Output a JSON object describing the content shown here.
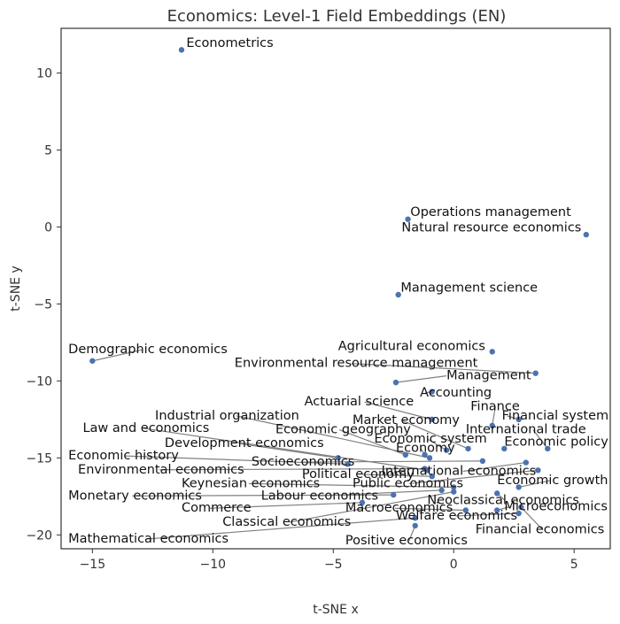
{
  "chart_data": {
    "type": "scatter",
    "title": "Economics: Level-1 Field Embeddings (EN)",
    "xlabel": "t-SNE x",
    "ylabel": "t-SNE y",
    "xlim": [
      -16.3,
      6.5
    ],
    "ylim": [
      -20.9,
      12.9
    ],
    "xticks": [
      -15,
      -10,
      -5,
      0,
      5
    ],
    "xtick_labels": [
      "−15",
      "−10",
      "−5",
      "0",
      "5"
    ],
    "yticks": [
      10,
      5,
      0,
      -5,
      -10,
      -15,
      -20
    ],
    "ytick_labels": [
      "10",
      "5",
      "0",
      "−5",
      "−10",
      "−15",
      "−20"
    ],
    "grid": false,
    "point_color": "#4c72b0",
    "connector_color": "#808080",
    "points": [
      {
        "label": "Econometrics",
        "x": -11.3,
        "y": 11.5,
        "lx": -11.1,
        "ly": 11.7,
        "line": false
      },
      {
        "label": "Operations management",
        "x": -1.9,
        "y": 0.5,
        "lx": -1.8,
        "ly": 0.7,
        "line": false
      },
      {
        "label": "Natural resource economics",
        "x": 5.5,
        "y": -0.5,
        "lx": 5.3,
        "ly": -0.3,
        "line": false,
        "anchor": "end"
      },
      {
        "label": "Management science",
        "x": -2.3,
        "y": -4.4,
        "lx": -2.2,
        "ly": -4.2,
        "line": false
      },
      {
        "label": "Demographic economics",
        "x": -15.0,
        "y": -8.7,
        "lx": -16.0,
        "ly": -8.2,
        "line": true
      },
      {
        "label": "Agricultural economics",
        "x": 1.6,
        "y": -8.1,
        "lx": -4.8,
        "ly": -8.0,
        "line": false
      },
      {
        "label": "Environmental resource management",
        "x": 3.4,
        "y": -9.5,
        "lx": -9.1,
        "ly": -9.1,
        "line": true
      },
      {
        "label": "Management",
        "x": -2.4,
        "y": -10.1,
        "lx": -0.3,
        "ly": -9.9,
        "line": true
      },
      {
        "label": "Accounting",
        "x": -0.9,
        "y": -10.7,
        "lx": -1.4,
        "ly": -11.0,
        "line": true
      },
      {
        "label": "Finance",
        "x": 1.6,
        "y": -12.9,
        "lx": 0.7,
        "ly": -11.9,
        "line": true
      },
      {
        "label": "Financial system",
        "x": 2.7,
        "y": -12.5,
        "lx": 2.0,
        "ly": -12.5,
        "line": true
      },
      {
        "label": "Actuarial science",
        "x": -0.9,
        "y": -12.5,
        "lx": -6.2,
        "ly": -11.6,
        "line": true
      },
      {
        "label": "Industrial organization",
        "x": -1.0,
        "y": -15.0,
        "lx": -12.4,
        "ly": -12.5,
        "line": true
      },
      {
        "label": "Market economy",
        "x": 0.6,
        "y": -14.4,
        "lx": -4.2,
        "ly": -12.8,
        "line": true
      },
      {
        "label": "Law and economics",
        "x": -1.1,
        "y": -15.8,
        "lx": -15.4,
        "ly": -13.3,
        "line": true
      },
      {
        "label": "Economic geography",
        "x": -2.0,
        "y": -14.8,
        "lx": -7.4,
        "ly": -13.4,
        "line": true
      },
      {
        "label": "International trade",
        "x": 3.9,
        "y": -14.4,
        "lx": 0.5,
        "ly": -13.4,
        "line": true
      },
      {
        "label": "Economic system",
        "x": -0.3,
        "y": -14.5,
        "lx": -3.3,
        "ly": -14.0,
        "line": true
      },
      {
        "label": "Development economics",
        "x": -4.8,
        "y": -15.0,
        "lx": -12.0,
        "ly": -14.3,
        "line": true
      },
      {
        "label": "Economic policy",
        "x": 2.1,
        "y": -14.4,
        "lx": 2.1,
        "ly": -14.2,
        "line": false
      },
      {
        "label": "Economy",
        "x": -1.2,
        "y": -14.8,
        "lx": -2.4,
        "ly": -14.6,
        "line": true
      },
      {
        "label": "Economic history",
        "x": -4.4,
        "y": -15.4,
        "lx": -16.0,
        "ly": -15.1,
        "line": true
      },
      {
        "label": "Socioeconomics",
        "x": 1.2,
        "y": -15.2,
        "lx": -8.4,
        "ly": -15.5,
        "line": true
      },
      {
        "label": "Environmental economics",
        "x": -1.2,
        "y": -15.7,
        "lx": -15.6,
        "ly": -16.0,
        "line": true
      },
      {
        "label": "Political economy",
        "x": -0.9,
        "y": -16.2,
        "lx": -6.3,
        "ly": -16.3,
        "line": true
      },
      {
        "label": "International economics",
        "x": 3.0,
        "y": -15.3,
        "lx": -3.0,
        "ly": -16.1,
        "line": true
      },
      {
        "label": "Keynesian economics",
        "x": 0.0,
        "y": -16.9,
        "lx": -11.3,
        "ly": -16.9,
        "line": true
      },
      {
        "label": "Public economics",
        "x": 3.5,
        "y": -15.8,
        "lx": -4.2,
        "ly": -16.9,
        "line": true
      },
      {
        "label": "Economic growth",
        "x": 2.7,
        "y": -16.9,
        "lx": 1.8,
        "ly": -16.7,
        "line": true
      },
      {
        "label": "Monetary economics",
        "x": -2.5,
        "y": -17.4,
        "lx": -16.0,
        "ly": -17.7,
        "line": true
      },
      {
        "label": "Labour economics",
        "x": -0.5,
        "y": -17.1,
        "lx": -8.0,
        "ly": -17.7,
        "line": true
      },
      {
        "label": "Neoclassical economics",
        "x": 1.8,
        "y": -17.3,
        "lx": -1.1,
        "ly": -18.0,
        "line": true
      },
      {
        "label": "Commerce",
        "x": -3.8,
        "y": -17.9,
        "lx": -11.3,
        "ly": -18.5,
        "line": true
      },
      {
        "label": "Macroeconomics",
        "x": 0.5,
        "y": -18.4,
        "lx": -4.5,
        "ly": -18.5,
        "line": true
      },
      {
        "label": "Microeconomics",
        "x": 1.8,
        "y": -18.4,
        "lx": 2.1,
        "ly": -18.4,
        "line": true
      },
      {
        "label": "Welfare economics",
        "x": 2.7,
        "y": -18.6,
        "lx": -2.4,
        "ly": -19.0,
        "line": true
      },
      {
        "label": "Classical economics",
        "x": 0.0,
        "y": -17.2,
        "lx": -9.6,
        "ly": -19.4,
        "line": true
      },
      {
        "label": "Financial economics",
        "x": 2.8,
        "y": -18.2,
        "lx": 0.9,
        "ly": -19.9,
        "line": true
      },
      {
        "label": "Mathematical economics",
        "x": -1.6,
        "y": -18.9,
        "lx": -16.0,
        "ly": -20.5,
        "line": true
      },
      {
        "label": "Positive economics",
        "x": -1.6,
        "y": -19.4,
        "lx": -4.5,
        "ly": -20.6,
        "line": true
      }
    ]
  }
}
